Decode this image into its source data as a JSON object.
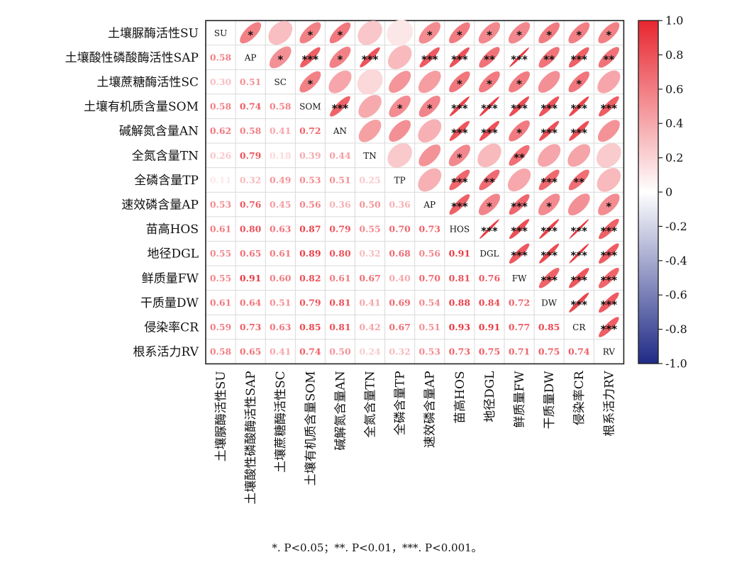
{
  "chart_data": {
    "type": "heatmap",
    "variables": [
      "土壤脲酶活性SU",
      "土壤酸性磷酸酶活性SAP",
      "土壤蔗糖酶活性SC",
      "土壤有机质含量SOM",
      "碱解氮含量AN",
      "全氮含量TN",
      "全磷含量TP",
      "速效磷含量AP",
      "苗高HOS",
      "地径DGL",
      "鲜质量FW",
      "干质量DW",
      "侵染率CR",
      "根系活力RV"
    ],
    "diagonal_labels": [
      "SU",
      "AP",
      "SC",
      "SOM",
      "AN",
      "TN",
      "TP",
      "AP",
      "HOS",
      "DGL",
      "FW",
      "DW",
      "CR",
      "RV"
    ],
    "lower_values": [
      [],
      [
        0.58
      ],
      [
        0.3,
        0.51
      ],
      [
        0.58,
        0.74,
        0.58
      ],
      [
        0.62,
        0.58,
        0.41,
        0.72
      ],
      [
        0.26,
        0.79,
        0.18,
        0.39,
        0.44
      ],
      [
        0.11,
        0.32,
        0.49,
        0.53,
        0.51,
        0.25
      ],
      [
        0.53,
        0.76,
        0.45,
        0.56,
        0.36,
        0.5,
        0.36
      ],
      [
        0.61,
        0.8,
        0.63,
        0.87,
        0.79,
        0.55,
        0.7,
        0.73
      ],
      [
        0.55,
        0.65,
        0.61,
        0.89,
        0.8,
        0.32,
        0.68,
        0.56,
        0.91
      ],
      [
        0.55,
        0.91,
        0.6,
        0.82,
        0.61,
        0.67,
        0.4,
        0.7,
        0.81,
        0.76
      ],
      [
        0.61,
        0.64,
        0.51,
        0.79,
        0.81,
        0.41,
        0.69,
        0.54,
        0.88,
        0.84,
        0.72
      ],
      [
        0.59,
        0.73,
        0.63,
        0.85,
        0.81,
        0.42,
        0.67,
        0.51,
        0.93,
        0.91,
        0.77,
        0.85
      ],
      [
        0.58,
        0.65,
        0.41,
        0.74,
        0.5,
        0.24,
        0.32,
        0.53,
        0.73,
        0.75,
        0.71,
        0.75,
        0.74
      ]
    ],
    "significance": [
      [],
      [
        "*"
      ],
      [
        "",
        "*"
      ],
      [
        "*",
        "***",
        "*"
      ],
      [
        "*",
        "*",
        "",
        "***"
      ],
      [
        "",
        "***",
        "",
        "",
        ""
      ],
      [
        "",
        "",
        "",
        "*",
        "",
        ""
      ],
      [
        "*",
        "***",
        "",
        "*",
        "",
        "",
        ""
      ],
      [
        "*",
        "***",
        "*",
        "***",
        "***",
        "*",
        "***",
        "***"
      ],
      [
        "*",
        "**",
        "*",
        "***",
        "***",
        "",
        "**",
        "*",
        "***"
      ],
      [
        "*",
        "***",
        "*",
        "***",
        "*",
        "**",
        "",
        "***",
        "***",
        "***"
      ],
      [
        "*",
        "**",
        "",
        "***",
        "***",
        "",
        "***",
        "*",
        "***",
        "***",
        "***"
      ],
      [
        "*",
        "***",
        "*",
        "***",
        "***",
        "",
        "**",
        "",
        "***",
        "***",
        "***",
        "***"
      ],
      [
        "*",
        "**",
        "",
        "***",
        "",
        "",
        "",
        "*",
        "***",
        "***",
        "***",
        "***",
        "***"
      ]
    ],
    "colorbar": {
      "min": -1.0,
      "max": 1.0,
      "ticks": [
        "1.0",
        "0.8",
        "0.6",
        "0.4",
        "0.2",
        "0",
        "-0.2",
        "-0.4",
        "-0.6",
        "-0.8",
        "-1.0"
      ]
    },
    "colors": {
      "positive": "#e8262f",
      "negative": "#1f2a86",
      "neutral": "#ffffff"
    }
  },
  "footnote": "*. P<0.05；**. P<0.01，***. P<0.001。"
}
